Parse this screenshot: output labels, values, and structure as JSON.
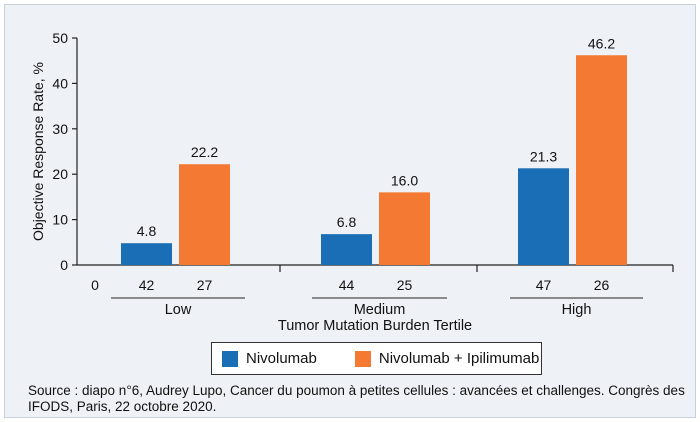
{
  "chart_data": {
    "type": "bar",
    "ylabel": "Objective Response Rate, %",
    "xlabel": "Tumor Mutation Burden Tertile",
    "ylim": [
      0,
      50
    ],
    "yticks": [
      "0",
      "10",
      "20",
      "30",
      "40",
      "50"
    ],
    "x_zero_label": "0",
    "categories": [
      "Low",
      "Medium",
      "High"
    ],
    "grid": false,
    "legend_position": "bottom-center",
    "series": [
      {
        "name": "Nivolumab",
        "color": "#1a6eb5",
        "values": [
          4.8,
          6.8,
          21.3
        ],
        "labels": [
          "4.8",
          "6.8",
          "21.3"
        ],
        "n": [
          "42",
          "44",
          "47"
        ]
      },
      {
        "name": "Nivolumab + Ipilimumab",
        "color": "#f47a33",
        "values": [
          22.2,
          16.0,
          46.2
        ],
        "labels": [
          "22.2",
          "16.0",
          "46.2"
        ],
        "n": [
          "27",
          "25",
          "26"
        ]
      }
    ]
  },
  "source": "Source : diapo n°6, Audrey Lupo, Cancer du poumon à petites cellules : avancées et challenges. Congrès des IFODS, Paris, 22 octobre 2020."
}
